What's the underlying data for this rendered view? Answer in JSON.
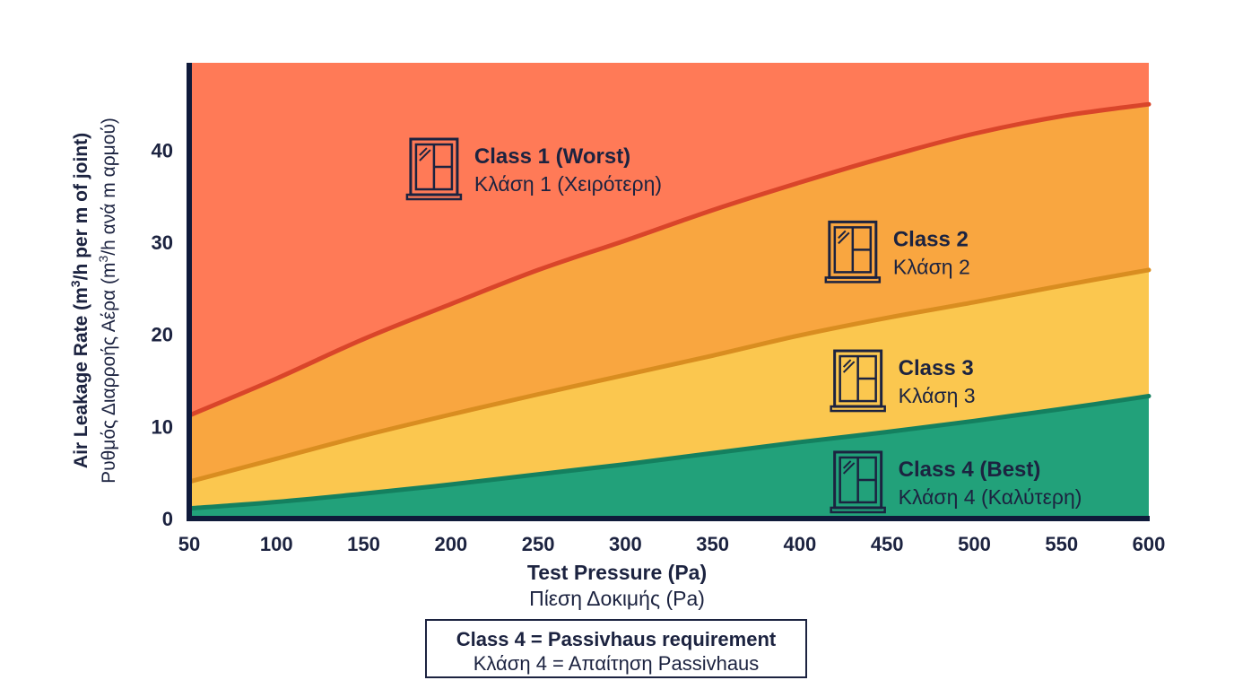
{
  "chart_data": {
    "type": "area",
    "x": [
      50,
      100,
      150,
      200,
      250,
      300,
      350,
      400,
      450,
      500,
      550,
      600
    ],
    "xlim": [
      50,
      600
    ],
    "ylim": [
      0,
      50
    ],
    "x_ticks": [
      "50",
      "100",
      "150",
      "200",
      "250",
      "300",
      "350",
      "400",
      "450",
      "500",
      "550",
      "600"
    ],
    "y_ticks": [
      "0",
      "10",
      "20",
      "30",
      "40"
    ],
    "y_tick_values": [
      0,
      10,
      20,
      30,
      40
    ],
    "xlabel": "Test Pressure (Pa)",
    "xlabel_greek": "Πίεση Δοκιμής (Pa)",
    "ylabel_main": "Air Leakage Rate (m",
    "ylabel_sup": "3",
    "ylabel_rest": "/h per m of joint)",
    "ylabel_greek_main": "Ρυθμός Διαρροής Αέρα (m",
    "ylabel_greek_sup": "3",
    "ylabel_greek_rest": "/h ανά m αρμού)",
    "boundaries": [
      {
        "name": "Class 1 / Class 2 limit",
        "color": "#d9452a",
        "values": [
          11.2,
          15.2,
          19.5,
          23.3,
          27.0,
          30.2,
          33.5,
          36.5,
          39.3,
          41.8,
          43.7,
          45.0
        ]
      },
      {
        "name": "Class 2 / Class 3 limit",
        "color": "#d98d20",
        "values": [
          4.0,
          6.5,
          9.0,
          11.3,
          13.5,
          15.6,
          17.7,
          19.9,
          21.8,
          23.5,
          25.3,
          27.0
        ]
      },
      {
        "name": "Class 3 / Class 4 limit",
        "color": "#14805f",
        "values": [
          1.1,
          1.8,
          2.7,
          3.7,
          4.8,
          5.9,
          7.1,
          8.3,
          9.4,
          10.6,
          11.9,
          13.3
        ]
      }
    ],
    "regions": [
      {
        "title": "Class 1 (Worst)",
        "subtitle": "Κλάση 1 (Χειρότερη)",
        "fill": "#ff7a57",
        "label_x": 180,
        "label_y": 38
      },
      {
        "title": "Class 2",
        "subtitle": "Κλάση 2",
        "fill": "#f9a640",
        "label_x": 420,
        "label_y": 29
      },
      {
        "title": "Class 3",
        "subtitle": "Κλάση 3",
        "fill": "#fbc74f",
        "label_x": 423,
        "label_y": 15
      },
      {
        "title": "Class 4 (Best)",
        "subtitle": "Κλάση 4 (Καλύτερη)",
        "fill": "#22a17a",
        "label_x": 423,
        "label_y": 4
      }
    ]
  },
  "note": {
    "line1": "Class 4 = Passivhaus requirement",
    "line2": "Κλάση 4 = Απαίτηση Passivhaus"
  },
  "icon_name": "window-icon",
  "axis_color": "#0f1a3a"
}
